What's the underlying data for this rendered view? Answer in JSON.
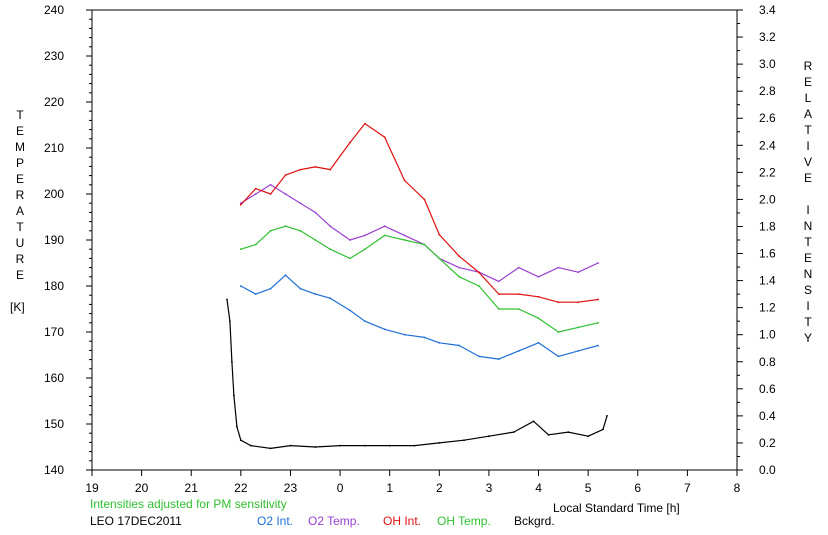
{
  "chart_data": {
    "type": "line",
    "left_axis_label_letters": "TEMPERATURE",
    "left_axis_unit": "[K]",
    "right_axis_label_word1": "RELATIVE",
    "right_axis_label_word2": "INTENSITY",
    "xlabel": "Local Standard Time [h]",
    "x_ticks": [
      "19",
      "20",
      "21",
      "22",
      "23",
      "0",
      "1",
      "2",
      "3",
      "4",
      "5",
      "6",
      "7",
      "8"
    ],
    "x_range": [
      19,
      32
    ],
    "y_left_range": [
      140,
      240
    ],
    "y_left_ticks": [
      "140",
      "150",
      "160",
      "170",
      "180",
      "190",
      "200",
      "210",
      "220",
      "230",
      "240"
    ],
    "y_right_range": [
      0.0,
      3.4
    ],
    "y_right_ticks": [
      "0.0",
      "0.2",
      "0.4",
      "0.6",
      "0.8",
      "1.0",
      "1.2",
      "1.4",
      "1.6",
      "1.8",
      "2.0",
      "2.2",
      "2.4",
      "2.6",
      "2.8",
      "3.0",
      "3.2",
      "3.4"
    ],
    "note": "Intensities adjusted for PM sensitivity",
    "station": "LEO 17DEC2011",
    "grid": false,
    "legend_position": "bottom",
    "series": [
      {
        "name": "O2 Int.",
        "color": "#1e6fd8",
        "axis": "right",
        "x": [
          22.0,
          22.3,
          22.6,
          22.9,
          23.2,
          23.5,
          23.8,
          24.2,
          24.5,
          24.9,
          25.3,
          25.7,
          26.0,
          26.4,
          26.8,
          27.2,
          27.6,
          28.0,
          28.4,
          28.8,
          29.2
        ],
        "y": [
          1.36,
          1.3,
          1.34,
          1.44,
          1.34,
          1.3,
          1.27,
          1.18,
          1.1,
          1.04,
          1.0,
          0.98,
          0.94,
          0.92,
          0.84,
          0.82,
          0.88,
          0.94,
          0.84,
          0.88,
          0.92
        ]
      },
      {
        "name": "O2 Temp.",
        "color": "#9a40d0",
        "axis": "left",
        "x": [
          22.0,
          22.3,
          22.6,
          22.9,
          23.2,
          23.5,
          23.8,
          24.2,
          24.5,
          24.9,
          25.3,
          25.7,
          26.0,
          26.4,
          26.8,
          27.2,
          27.6,
          28.0,
          28.4,
          28.8,
          29.2
        ],
        "y": [
          198,
          200,
          202,
          200,
          198,
          196,
          193,
          190,
          191,
          193,
          191,
          189,
          186,
          184,
          183,
          181,
          184,
          182,
          184,
          183,
          185
        ]
      },
      {
        "name": "OH Int.",
        "color": "#e01010",
        "axis": "right",
        "x": [
          22.0,
          22.3,
          22.6,
          22.9,
          23.2,
          23.5,
          23.8,
          24.2,
          24.5,
          24.9,
          25.3,
          25.7,
          26.0,
          26.4,
          26.8,
          27.2,
          27.6,
          28.0,
          28.4,
          28.8,
          29.2
        ],
        "y": [
          1.96,
          2.08,
          2.04,
          2.18,
          2.22,
          2.24,
          2.22,
          2.42,
          2.56,
          2.46,
          2.14,
          2.0,
          1.74,
          1.58,
          1.46,
          1.3,
          1.3,
          1.28,
          1.24,
          1.24,
          1.26
        ]
      },
      {
        "name": "OH Temp.",
        "color": "#30c030",
        "axis": "left",
        "x": [
          22.0,
          22.3,
          22.6,
          22.9,
          23.2,
          23.5,
          23.8,
          24.2,
          24.5,
          24.9,
          25.3,
          25.7,
          26.0,
          26.4,
          26.8,
          27.2,
          27.6,
          28.0,
          28.4,
          28.8,
          29.2
        ],
        "y": [
          188,
          189,
          192,
          193,
          192,
          190,
          188,
          186,
          188,
          191,
          190,
          189,
          186,
          182,
          180,
          175,
          175,
          173,
          170,
          171,
          172
        ]
      },
      {
        "name": "Bckgrd.",
        "color": "#000000",
        "axis": "right",
        "x": [
          21.72,
          21.78,
          21.82,
          21.86,
          21.92,
          22.0,
          22.2,
          22.6,
          23.0,
          23.5,
          24.0,
          24.5,
          25.0,
          25.5,
          26.0,
          26.5,
          27.0,
          27.5,
          27.9,
          28.2,
          28.6,
          29.0,
          29.3,
          29.38
        ],
        "y": [
          1.26,
          1.1,
          0.8,
          0.55,
          0.32,
          0.22,
          0.18,
          0.16,
          0.18,
          0.17,
          0.18,
          0.18,
          0.18,
          0.18,
          0.2,
          0.22,
          0.25,
          0.28,
          0.36,
          0.26,
          0.28,
          0.25,
          0.3,
          0.4
        ]
      }
    ]
  }
}
